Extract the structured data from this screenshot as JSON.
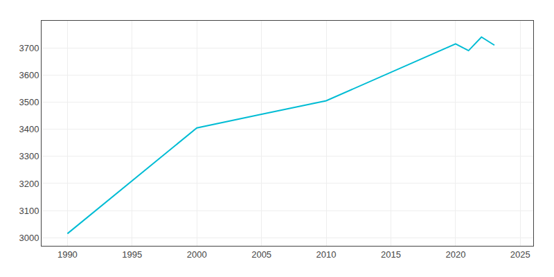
{
  "chart_data": {
    "type": "line",
    "x": [
      1990,
      2000,
      2005,
      2010,
      2020,
      2021,
      2022,
      2023
    ],
    "values": [
      3015,
      3405,
      3455,
      3505,
      3715,
      3690,
      3740,
      3710
    ],
    "color": "#00bcd4",
    "xlim": [
      1988,
      2026
    ],
    "ylim": [
      2970,
      3800
    ],
    "xticks": [
      1990,
      1995,
      2000,
      2005,
      2010,
      2015,
      2020,
      2025
    ],
    "yticks": [
      3000,
      3100,
      3200,
      3300,
      3400,
      3500,
      3600,
      3700
    ],
    "grid": true
  }
}
